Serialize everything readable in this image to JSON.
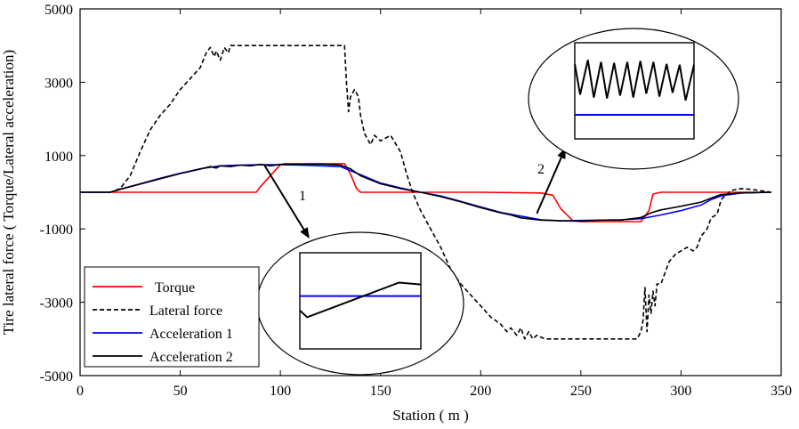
{
  "chart_data": {
    "type": "line",
    "title": "",
    "xlabel": "Station ( m )",
    "ylabel": "Tire lateral force ( Torque/Lateral acceleration)",
    "xlim": [
      0,
      350
    ],
    "ylim": [
      -5000,
      5000
    ],
    "xticks": [
      0,
      50,
      100,
      150,
      200,
      250,
      300,
      350
    ],
    "yticks": [
      -5000,
      -3000,
      -1000,
      1000,
      3000,
      5000
    ],
    "xtick_labels": [
      "0",
      "50",
      "100",
      "150",
      "200",
      "250",
      "300",
      "350"
    ],
    "ytick_labels": [
      "-5000",
      "-3000",
      "-1000",
      "1000",
      "3000",
      "5000"
    ],
    "grid": false,
    "legend_position": "bottom-left",
    "series": [
      {
        "name": "Torque",
        "color": "#ff0000",
        "style": "solid",
        "x": [
          0,
          85,
          88,
          90,
          100,
          102,
          110,
          120,
          132,
          135,
          138,
          140,
          150,
          200,
          230,
          236,
          240,
          246,
          250,
          270,
          280,
          284,
          286,
          290,
          300,
          320,
          345
        ],
        "y": [
          0,
          0,
          0,
          150,
          750,
          780,
          780,
          780,
          780,
          500,
          100,
          0,
          0,
          0,
          -20,
          -80,
          -450,
          -780,
          -800,
          -800,
          -800,
          -500,
          -50,
          0,
          0,
          0,
          0
        ]
      },
      {
        "name": "Lateral force",
        "color": "#000000",
        "style": "dashed",
        "x": [
          0,
          15,
          20,
          25,
          30,
          35,
          40,
          45,
          50,
          55,
          60,
          63,
          65,
          67,
          68,
          70,
          72,
          74,
          75,
          80,
          90,
          100,
          110,
          120,
          125,
          130,
          132,
          133,
          134,
          135,
          137,
          139,
          140,
          142,
          145,
          147,
          150,
          155,
          160,
          163,
          166,
          170,
          175,
          180,
          185,
          190,
          195,
          200,
          205,
          210,
          213,
          215,
          218,
          220,
          222,
          224,
          226,
          228,
          232,
          240,
          250,
          260,
          270,
          278,
          280,
          281,
          282,
          283,
          284,
          285,
          286,
          287,
          288,
          290,
          292,
          294,
          297,
          300,
          303,
          306,
          308,
          310,
          313,
          315,
          318,
          320,
          325,
          330,
          335,
          345
        ],
        "y": [
          0,
          0,
          100,
          450,
          1100,
          1700,
          2100,
          2400,
          2800,
          3100,
          3400,
          3800,
          3950,
          3700,
          3850,
          3600,
          3950,
          3800,
          4000,
          4000,
          4000,
          4000,
          4000,
          4000,
          4000,
          4000,
          4000,
          3000,
          2200,
          2600,
          2800,
          2600,
          2100,
          1600,
          1300,
          1550,
          1400,
          1550,
          1100,
          500,
          0,
          -500,
          -1000,
          -1500,
          -2100,
          -2500,
          -2800,
          -3100,
          -3400,
          -3600,
          -3800,
          -3700,
          -3900,
          -3700,
          -4000,
          -3800,
          -4000,
          -3900,
          -4000,
          -4000,
          -4000,
          -4000,
          -4000,
          -4000,
          -3800,
          -3500,
          -2600,
          -3800,
          -2800,
          -3300,
          -2700,
          -3100,
          -2500,
          -2500,
          -2200,
          -1900,
          -1700,
          -1600,
          -1500,
          -1600,
          -1500,
          -1200,
          -1000,
          -700,
          -600,
          -200,
          50,
          100,
          80,
          0
        ]
      },
      {
        "name": "Acceleration 1",
        "color": "#0000ff",
        "style": "solid",
        "x": [
          0,
          15,
          20,
          30,
          40,
          50,
          60,
          70,
          80,
          90,
          100,
          110,
          120,
          130,
          140,
          150,
          160,
          170,
          180,
          190,
          200,
          210,
          220,
          230,
          240,
          250,
          260,
          270,
          280,
          290,
          300,
          310,
          315,
          320,
          330,
          345
        ],
        "y": [
          0,
          0,
          80,
          230,
          380,
          520,
          640,
          720,
          740,
          750,
          750,
          740,
          720,
          700,
          480,
          250,
          120,
          0,
          -100,
          -250,
          -400,
          -550,
          -650,
          -750,
          -780,
          -770,
          -760,
          -750,
          -720,
          -620,
          -500,
          -350,
          -200,
          -100,
          -20,
          0
        ]
      },
      {
        "name": "Acceleration 2",
        "color": "#000000",
        "style": "solid",
        "x": [
          0,
          15,
          20,
          30,
          40,
          50,
          60,
          65,
          68,
          70,
          75,
          80,
          85,
          90,
          95,
          100,
          110,
          120,
          130,
          135,
          140,
          150,
          160,
          170,
          180,
          190,
          200,
          210,
          215,
          220,
          230,
          240,
          250,
          260,
          270,
          280,
          285,
          290,
          300,
          310,
          315,
          320,
          330,
          345
        ],
        "y": [
          0,
          0,
          80,
          220,
          370,
          510,
          630,
          700,
          660,
          720,
          700,
          740,
          720,
          760,
          720,
          760,
          760,
          770,
          740,
          640,
          450,
          230,
          100,
          0,
          -120,
          -260,
          -420,
          -560,
          -620,
          -700,
          -760,
          -780,
          -790,
          -760,
          -760,
          -690,
          -560,
          -480,
          -380,
          -270,
          -160,
          -60,
          -20,
          0
        ]
      }
    ],
    "annotations": [
      {
        "label": "1",
        "from": [
          92,
          740
        ],
        "to": [
          114,
          -1220
        ]
      },
      {
        "label": "2",
        "from": [
          228,
          -580
        ],
        "to": [
          242,
          1170
        ]
      }
    ],
    "insets": [
      {
        "label": "1",
        "series": [
          {
            "name": "Acceleration 1",
            "color": "#0000ff",
            "y_fraction": [
              0.55,
              0.55
            ]
          },
          {
            "name": "Acceleration 2",
            "color": "#000000",
            "x_fraction": [
              0.0,
              0.06,
              0.82,
              1.0
            ],
            "y_fraction": [
              0.4,
              0.33,
              0.69,
              0.67
            ]
          }
        ]
      },
      {
        "label": "2",
        "series": [
          {
            "name": "Acceleration 1",
            "color": "#0000ff",
            "y_fraction": [
              0.25,
              0.25
            ]
          },
          {
            "name": "Acceleration 2",
            "color": "#000000",
            "x_fraction": [
              0.0,
              0.045,
              0.11,
              0.16,
              0.22,
              0.27,
              0.33,
              0.38,
              0.44,
              0.49,
              0.55,
              0.6,
              0.66,
              0.71,
              0.77,
              0.82,
              0.88,
              0.93,
              1.0
            ],
            "y_fraction": [
              0.78,
              0.46,
              0.82,
              0.43,
              0.8,
              0.42,
              0.79,
              0.45,
              0.8,
              0.43,
              0.81,
              0.47,
              0.8,
              0.44,
              0.78,
              0.48,
              0.77,
              0.4,
              0.77
            ]
          }
        ]
      }
    ]
  }
}
